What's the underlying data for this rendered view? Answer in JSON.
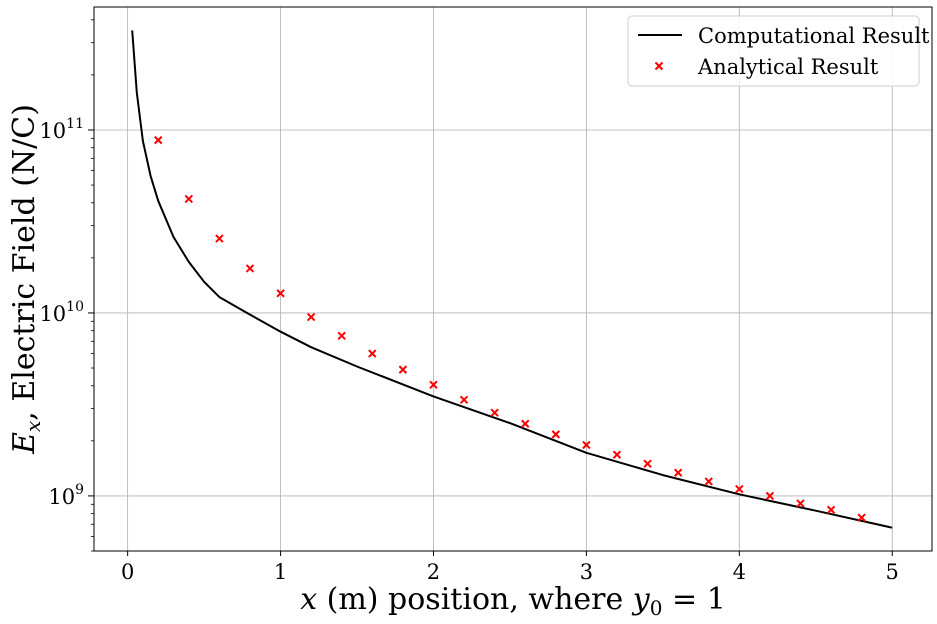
{
  "chart_data": {
    "type": "line",
    "xlabel": {
      "var": "x",
      "text": " (m) position, where ",
      "cond_var": "y",
      "cond_sub": "0",
      "cond_eq": " = ",
      "cond_val": "1"
    },
    "ylabel": {
      "var": "E",
      "sub": "x",
      "text": ", Electric Field (N/C)"
    },
    "xlim": [
      -0.22,
      5.26
    ],
    "ylim": [
      500000000.0,
      470000000000.0
    ],
    "yscale": "log",
    "grid": true,
    "legend_position": "top-right",
    "x_ticks": [
      {
        "value": 0,
        "label": "0"
      },
      {
        "value": 1,
        "label": "1"
      },
      {
        "value": 2,
        "label": "2"
      },
      {
        "value": 3,
        "label": "3"
      },
      {
        "value": 4,
        "label": "4"
      },
      {
        "value": 5,
        "label": "5"
      }
    ],
    "y_ticks": [
      {
        "value": 1000000000.0,
        "base": "10",
        "exp": "9"
      },
      {
        "value": 10000000000.0,
        "base": "10",
        "exp": "10"
      },
      {
        "value": 100000000000.0,
        "base": "10",
        "exp": "11"
      }
    ],
    "series": [
      {
        "name": "Computational Result",
        "style": "line",
        "color": "#000000",
        "x": [
          0.03,
          0.06,
          0.1,
          0.15,
          0.2,
          0.3,
          0.4,
          0.5,
          0.6,
          0.8,
          1.0,
          1.2,
          1.5,
          2.0,
          2.5,
          3.0,
          3.5,
          4.0,
          4.5,
          5.0
        ],
        "values": [
          350000000000.0,
          160000000000.0,
          87000000000.0,
          56000000000.0,
          41000000000.0,
          26000000000.0,
          19000000000.0,
          14800000000.0,
          12200000000.0,
          9800000000.0,
          7900000000.0,
          6500000000.0,
          5100000000.0,
          3500000000.0,
          2500000000.0,
          1720000000.0,
          1300000000.0,
          1020000000.0,
          830000000.0,
          670000000.0
        ]
      },
      {
        "name": "Analytical Result",
        "style": "marker-x",
        "color": "#ff0000",
        "x": [
          0.2,
          0.4,
          0.6,
          0.8,
          1.0,
          1.2,
          1.4,
          1.6,
          1.8,
          2.0,
          2.2,
          2.4,
          2.6,
          2.8,
          3.0,
          3.2,
          3.4,
          3.6,
          3.8,
          4.0,
          4.2,
          4.4,
          4.6,
          4.8
        ],
        "values": [
          88000000000.0,
          42000000000.0,
          25500000000.0,
          17500000000.0,
          12800000000.0,
          9500000000.0,
          7500000000.0,
          6000000000.0,
          4900000000.0,
          4050000000.0,
          3350000000.0,
          2850000000.0,
          2480000000.0,
          2170000000.0,
          1900000000.0,
          1680000000.0,
          1500000000.0,
          1340000000.0,
          1200000000.0,
          1090000000.0,
          1000000000.0,
          910000000.0,
          840000000.0,
          760000000.0
        ]
      }
    ]
  }
}
